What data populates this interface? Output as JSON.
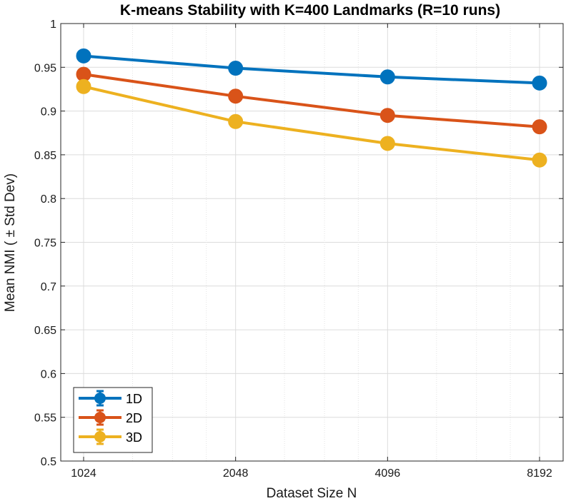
{
  "chart_data": {
    "type": "line",
    "title": "K-means Stability with K=400 Landmarks (R=10 runs)",
    "xlabel": "Dataset Size N",
    "ylabel": "Mean  NMI  ( ±  Std  Dev)",
    "x_scale": "log2",
    "x": [
      1024,
      2048,
      4096,
      8192
    ],
    "x_tick_labels": [
      "1024",
      "2048",
      "4096",
      "8192"
    ],
    "ylim": [
      0.5,
      1
    ],
    "y_tick_labels": [
      "0.5",
      "0.55",
      "0.6",
      "0.65",
      "0.7",
      "0.75",
      "0.8",
      "0.85",
      "0.9",
      "0.95",
      "1"
    ],
    "grid": true,
    "legend_position": "bottom-left",
    "series": [
      {
        "name": "1D",
        "color": "#0072BD",
        "values": [
          0.963,
          0.949,
          0.939,
          0.932
        ]
      },
      {
        "name": "2D",
        "color": "#D95319",
        "values": [
          0.942,
          0.917,
          0.895,
          0.882
        ]
      },
      {
        "name": "3D",
        "color": "#EDB120",
        "values": [
          0.928,
          0.888,
          0.863,
          0.844
        ]
      }
    ]
  }
}
